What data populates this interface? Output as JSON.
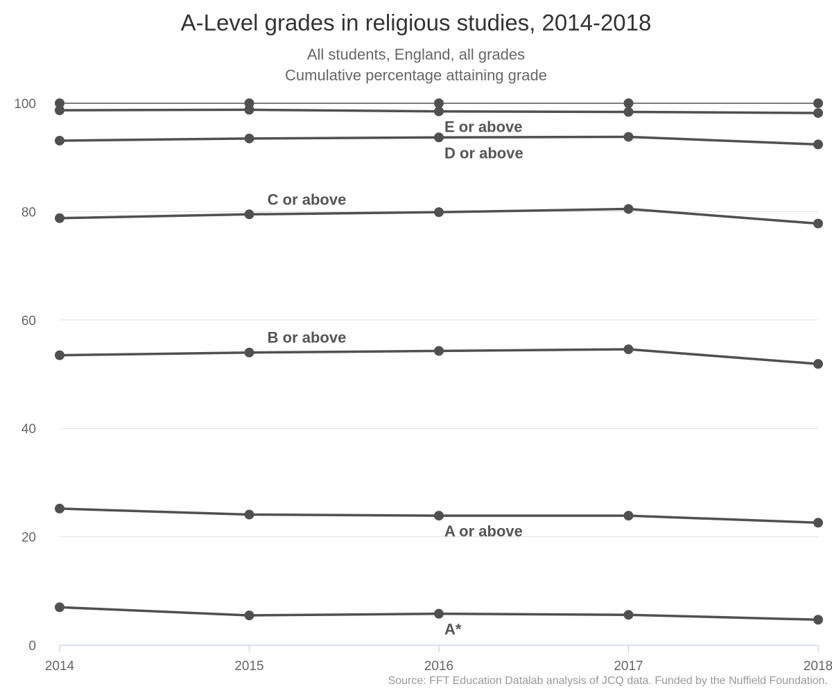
{
  "chart_data": {
    "type": "line",
    "title": "A-Level grades in religious studies, 2014-2018",
    "subtitle": [
      "All students, England, all grades",
      "Cumulative percentage attaining grade"
    ],
    "source": "Source: FFT Education Datalab analysis of JCQ data. Funded by the Nuffield Foundation.",
    "x": [
      "2014",
      "2015",
      "2016",
      "2017",
      "2018"
    ],
    "ylim": [
      0,
      100
    ],
    "yticks": [
      "0",
      "20",
      "40",
      "60",
      "80",
      "100"
    ],
    "grid": true,
    "legend": "none",
    "series": [
      {
        "name": "",
        "values": [
          100,
          100,
          100,
          100,
          100
        ]
      },
      {
        "name": "E or above",
        "values": [
          98.7,
          98.8,
          98.5,
          98.4,
          98.2
        ],
        "label_at": "2016",
        "label_pos": "below"
      },
      {
        "name": "D or above",
        "values": [
          93.1,
          93.5,
          93.7,
          93.8,
          92.4
        ],
        "label_at": "2016",
        "label_pos": "below"
      },
      {
        "name": "C or above",
        "values": [
          78.8,
          79.5,
          79.9,
          80.5,
          77.8
        ],
        "label_at": "2015",
        "label_pos": "above"
      },
      {
        "name": "B or above",
        "values": [
          53.5,
          54.0,
          54.3,
          54.6,
          51.9
        ],
        "label_at": "2015",
        "label_pos": "above"
      },
      {
        "name": "A or above",
        "values": [
          25.2,
          24.1,
          23.9,
          23.9,
          22.6
        ],
        "label_at": "2016",
        "label_pos": "below"
      },
      {
        "name": "A*",
        "values": [
          7.0,
          5.5,
          5.8,
          5.6,
          4.7
        ],
        "label_at": "2016",
        "label_pos": "below"
      }
    ],
    "colors": {
      "line": "#505050",
      "grid": "#e1e1e1",
      "axis": "#ccd6eb",
      "tick_label": "#666666",
      "series_label": "#555555"
    }
  }
}
